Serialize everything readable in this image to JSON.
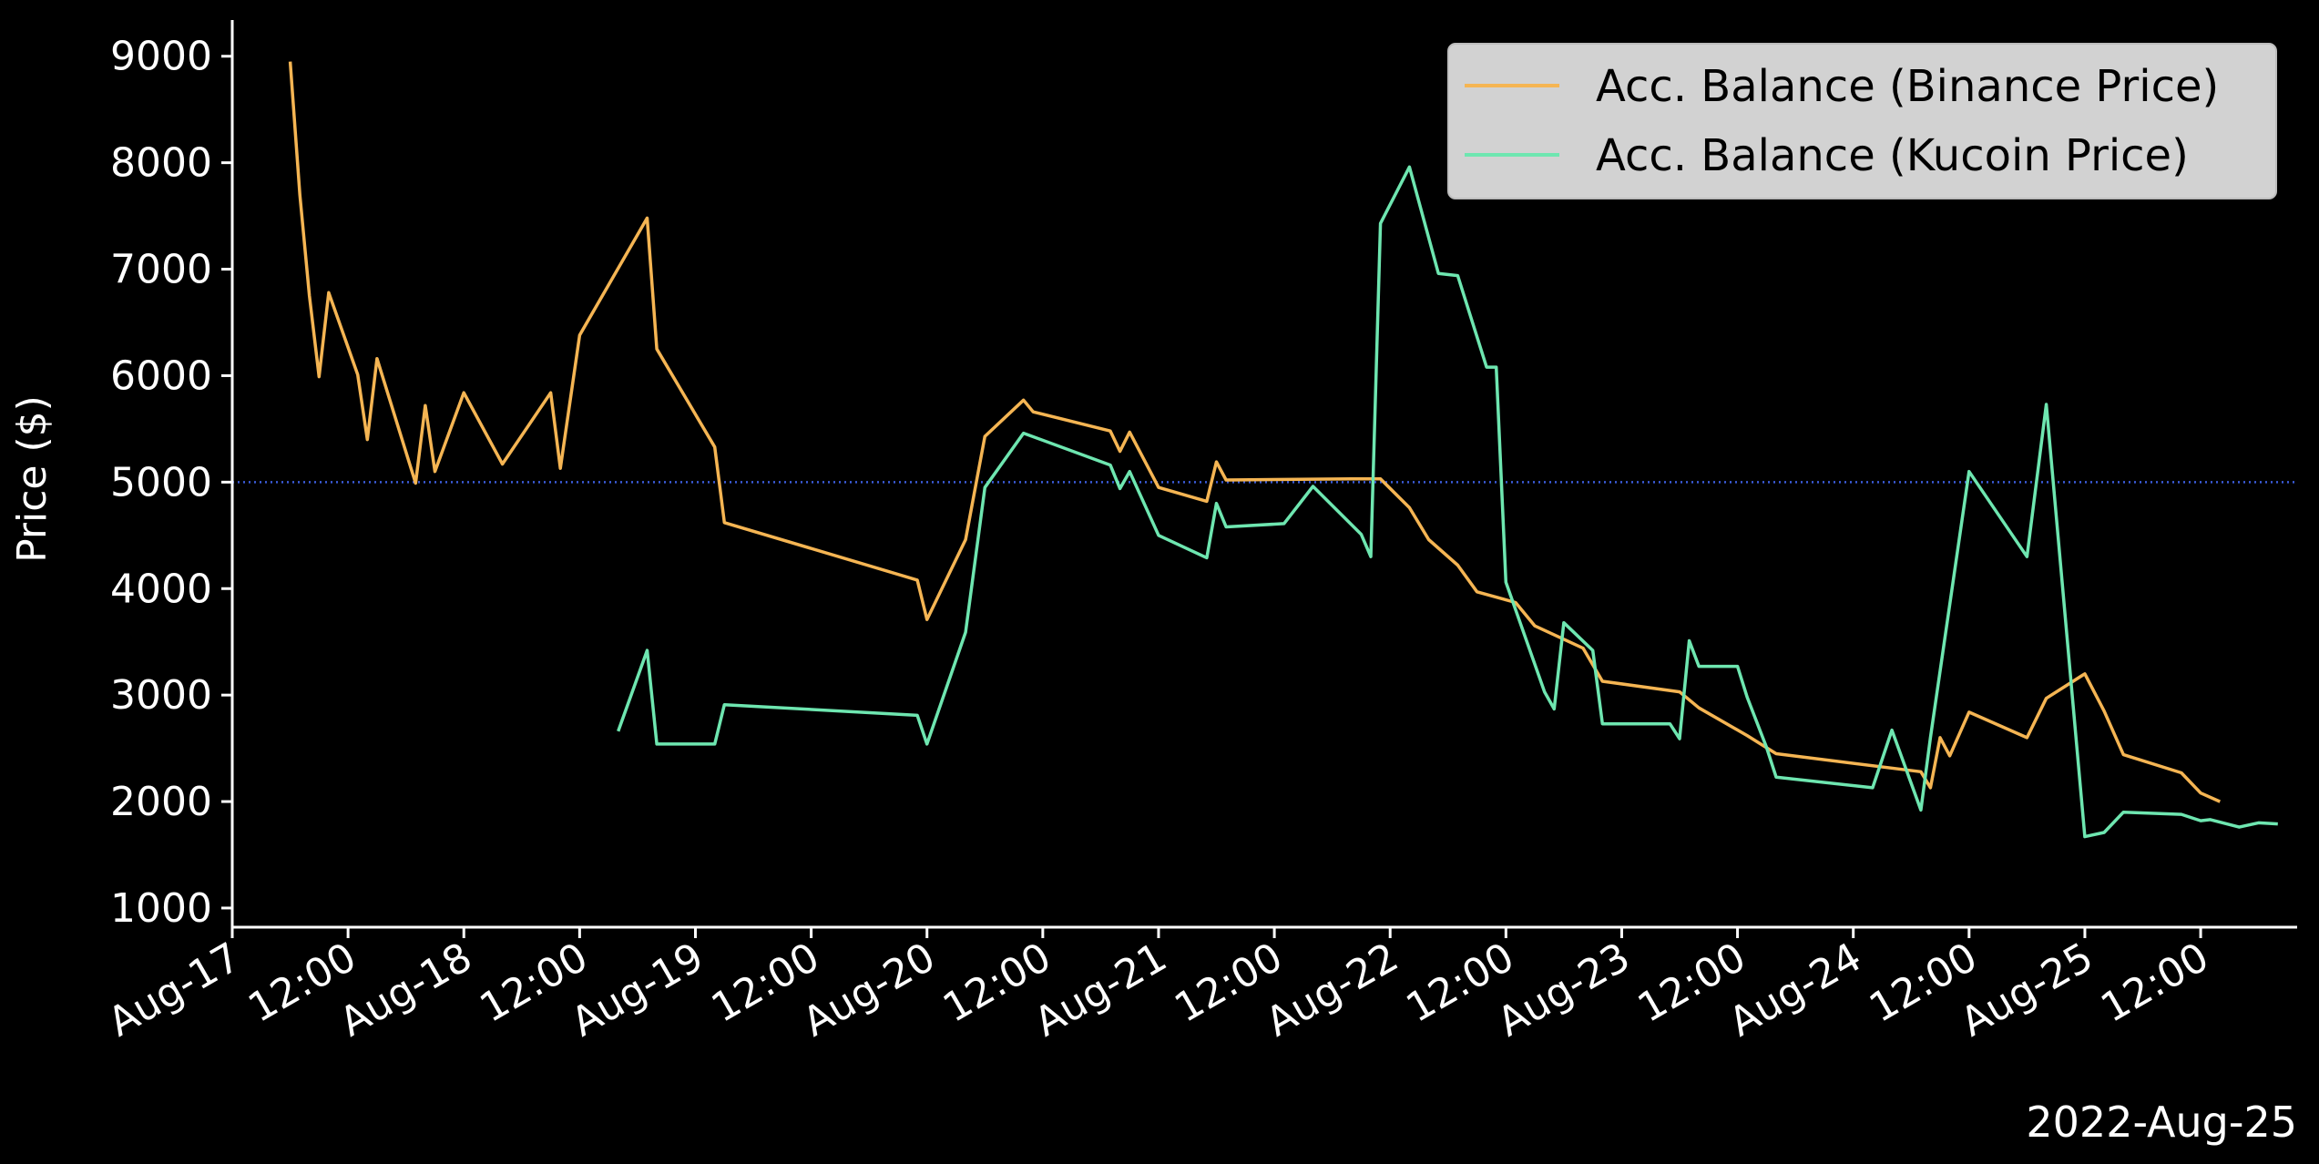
{
  "chart_data": {
    "type": "line",
    "title": "",
    "xlabel": "",
    "ylabel": "Price ($)",
    "offset_label": "2022-Aug-25",
    "xlim": [
      "2022-08-17 00:00",
      "2022-08-25 22:00"
    ],
    "ylim": [
      820,
      9340
    ],
    "yticks": [
      1000,
      2000,
      3000,
      4000,
      5000,
      6000,
      7000,
      8000,
      9000
    ],
    "xticks": [
      {
        "t": "2022-08-17 00:00",
        "label": "Aug-17"
      },
      {
        "t": "2022-08-17 12:00",
        "label": "12:00"
      },
      {
        "t": "2022-08-18 00:00",
        "label": "Aug-18"
      },
      {
        "t": "2022-08-18 12:00",
        "label": "12:00"
      },
      {
        "t": "2022-08-19 00:00",
        "label": "Aug-19"
      },
      {
        "t": "2022-08-19 12:00",
        "label": "12:00"
      },
      {
        "t": "2022-08-20 00:00",
        "label": "Aug-20"
      },
      {
        "t": "2022-08-20 12:00",
        "label": "12:00"
      },
      {
        "t": "2022-08-21 00:00",
        "label": "Aug-21"
      },
      {
        "t": "2022-08-21 12:00",
        "label": "12:00"
      },
      {
        "t": "2022-08-22 00:00",
        "label": "Aug-22"
      },
      {
        "t": "2022-08-22 12:00",
        "label": "12:00"
      },
      {
        "t": "2022-08-23 00:00",
        "label": "Aug-23"
      },
      {
        "t": "2022-08-23 12:00",
        "label": "12:00"
      },
      {
        "t": "2022-08-24 00:00",
        "label": "Aug-24"
      },
      {
        "t": "2022-08-24 12:00",
        "label": "12:00"
      },
      {
        "t": "2022-08-25 00:00",
        "label": "Aug-25"
      },
      {
        "t": "2022-08-25 12:00",
        "label": "12:00"
      }
    ],
    "reference_line": {
      "y": 5000,
      "color": "#3b5bd9",
      "style": "dotted"
    },
    "legend_position": "top-right",
    "grid": false,
    "series": [
      {
        "name": "Acc. Balance (Binance Price)",
        "color": "#f5b553",
        "points": [
          [
            "2022-08-17 06:00",
            8950
          ],
          [
            "2022-08-17 07:00",
            7700
          ],
          [
            "2022-08-17 08:00",
            6750
          ],
          [
            "2022-08-17 09:00",
            5990
          ],
          [
            "2022-08-17 10:00",
            6780
          ],
          [
            "2022-08-17 13:00",
            6010
          ],
          [
            "2022-08-17 14:00",
            5400
          ],
          [
            "2022-08-17 15:00",
            6160
          ],
          [
            "2022-08-17 19:00",
            4990
          ],
          [
            "2022-08-17 20:00",
            5720
          ],
          [
            "2022-08-17 21:00",
            5100
          ],
          [
            "2022-08-18 00:00",
            5840
          ],
          [
            "2022-08-18 04:00",
            5170
          ],
          [
            "2022-08-18 09:00",
            5840
          ],
          [
            "2022-08-18 10:00",
            5130
          ],
          [
            "2022-08-18 12:00",
            6380
          ],
          [
            "2022-08-18 19:00",
            7480
          ],
          [
            "2022-08-18 20:00",
            6250
          ],
          [
            "2022-08-19 02:00",
            5330
          ],
          [
            "2022-08-19 03:00",
            4620
          ],
          [
            "2022-08-19 23:00",
            4080
          ],
          [
            "2022-08-20 00:00",
            3710
          ],
          [
            "2022-08-20 04:00",
            4460
          ],
          [
            "2022-08-20 06:00",
            5430
          ],
          [
            "2022-08-20 10:00",
            5770
          ],
          [
            "2022-08-20 11:00",
            5660
          ],
          [
            "2022-08-20 19:00",
            5480
          ],
          [
            "2022-08-20 20:00",
            5290
          ],
          [
            "2022-08-20 21:00",
            5470
          ],
          [
            "2022-08-21 00:00",
            4950
          ],
          [
            "2022-08-21 05:00",
            4820
          ],
          [
            "2022-08-21 06:00",
            5190
          ],
          [
            "2022-08-21 07:00",
            5020
          ],
          [
            "2022-08-21 20:00",
            5030
          ],
          [
            "2022-08-21 23:00",
            5030
          ],
          [
            "2022-08-22 02:00",
            4760
          ],
          [
            "2022-08-22 04:00",
            4460
          ],
          [
            "2022-08-22 07:00",
            4220
          ],
          [
            "2022-08-22 09:00",
            3970
          ],
          [
            "2022-08-22 13:00",
            3870
          ],
          [
            "2022-08-22 15:00",
            3650
          ],
          [
            "2022-08-22 20:00",
            3440
          ],
          [
            "2022-08-22 22:00",
            3130
          ],
          [
            "2022-08-23 06:00",
            3030
          ],
          [
            "2022-08-23 08:00",
            2880
          ],
          [
            "2022-08-23 13:00",
            2620
          ],
          [
            "2022-08-23 16:00",
            2450
          ],
          [
            "2022-08-24 07:00",
            2280
          ],
          [
            "2022-08-24 08:00",
            2130
          ],
          [
            "2022-08-24 09:00",
            2600
          ],
          [
            "2022-08-24 10:00",
            2430
          ],
          [
            "2022-08-24 12:00",
            2840
          ],
          [
            "2022-08-24 18:00",
            2600
          ],
          [
            "2022-08-24 20:00",
            2970
          ],
          [
            "2022-08-24 24:00",
            3200
          ],
          [
            "2022-08-25 02:00",
            2850
          ],
          [
            "2022-08-25 04:00",
            2440
          ],
          [
            "2022-08-25 10:00",
            2270
          ],
          [
            "2022-08-25 12:00",
            2080
          ],
          [
            "2022-08-25 14:00",
            2000
          ]
        ]
      },
      {
        "name": "Acc. Balance (Kucoin Price)",
        "color": "#6ee6b0",
        "points": [
          [
            "2022-08-18 16:00",
            2660
          ],
          [
            "2022-08-18 19:00",
            3420
          ],
          [
            "2022-08-18 20:00",
            2540
          ],
          [
            "2022-08-19 02:00",
            2540
          ],
          [
            "2022-08-19 03:00",
            2910
          ],
          [
            "2022-08-19 23:00",
            2810
          ],
          [
            "2022-08-20 00:00",
            2540
          ],
          [
            "2022-08-20 04:00",
            3590
          ],
          [
            "2022-08-20 06:00",
            4950
          ],
          [
            "2022-08-20 10:00",
            5460
          ],
          [
            "2022-08-20 19:00",
            5160
          ],
          [
            "2022-08-20 20:00",
            4940
          ],
          [
            "2022-08-20 21:00",
            5100
          ],
          [
            "2022-08-21 00:00",
            4500
          ],
          [
            "2022-08-21 05:00",
            4290
          ],
          [
            "2022-08-21 06:00",
            4800
          ],
          [
            "2022-08-21 07:00",
            4580
          ],
          [
            "2022-08-21 13:00",
            4610
          ],
          [
            "2022-08-21 16:00",
            4960
          ],
          [
            "2022-08-21 21:00",
            4510
          ],
          [
            "2022-08-21 22:00",
            4300
          ],
          [
            "2022-08-21 23:00",
            7430
          ],
          [
            "2022-08-22 02:00",
            7960
          ],
          [
            "2022-08-22 05:00",
            6960
          ],
          [
            "2022-08-22 07:00",
            6940
          ],
          [
            "2022-08-22 10:00",
            6080
          ],
          [
            "2022-08-22 11:00",
            6080
          ],
          [
            "2022-08-22 12:00",
            4060
          ],
          [
            "2022-08-22 16:00",
            3030
          ],
          [
            "2022-08-22 17:00",
            2870
          ],
          [
            "2022-08-22 18:00",
            3680
          ],
          [
            "2022-08-22 21:00",
            3420
          ],
          [
            "2022-08-22 22:00",
            2730
          ],
          [
            "2022-08-23 05:00",
            2730
          ],
          [
            "2022-08-23 06:00",
            2590
          ],
          [
            "2022-08-23 07:00",
            3510
          ],
          [
            "2022-08-23 08:00",
            3270
          ],
          [
            "2022-08-23 12:00",
            3270
          ],
          [
            "2022-08-23 13:00",
            2980
          ],
          [
            "2022-08-23 15:00",
            2510
          ],
          [
            "2022-08-23 16:00",
            2230
          ],
          [
            "2022-08-24 02:00",
            2130
          ],
          [
            "2022-08-24 04:00",
            2670
          ],
          [
            "2022-08-24 07:00",
            1920
          ],
          [
            "2022-08-24 08:00",
            2600
          ],
          [
            "2022-08-24 12:00",
            5100
          ],
          [
            "2022-08-24 18:00",
            4300
          ],
          [
            "2022-08-24 20:00",
            5730
          ],
          [
            "2022-08-24 24:00",
            1670
          ],
          [
            "2022-08-25 02:00",
            1710
          ],
          [
            "2022-08-25 04:00",
            1900
          ],
          [
            "2022-08-25 10:00",
            1880
          ],
          [
            "2022-08-25 12:00",
            1820
          ],
          [
            "2022-08-25 13:00",
            1830
          ],
          [
            "2022-08-25 16:00",
            1760
          ],
          [
            "2022-08-25 18:00",
            1800
          ],
          [
            "2022-08-25 20:00",
            1790
          ]
        ]
      }
    ]
  }
}
